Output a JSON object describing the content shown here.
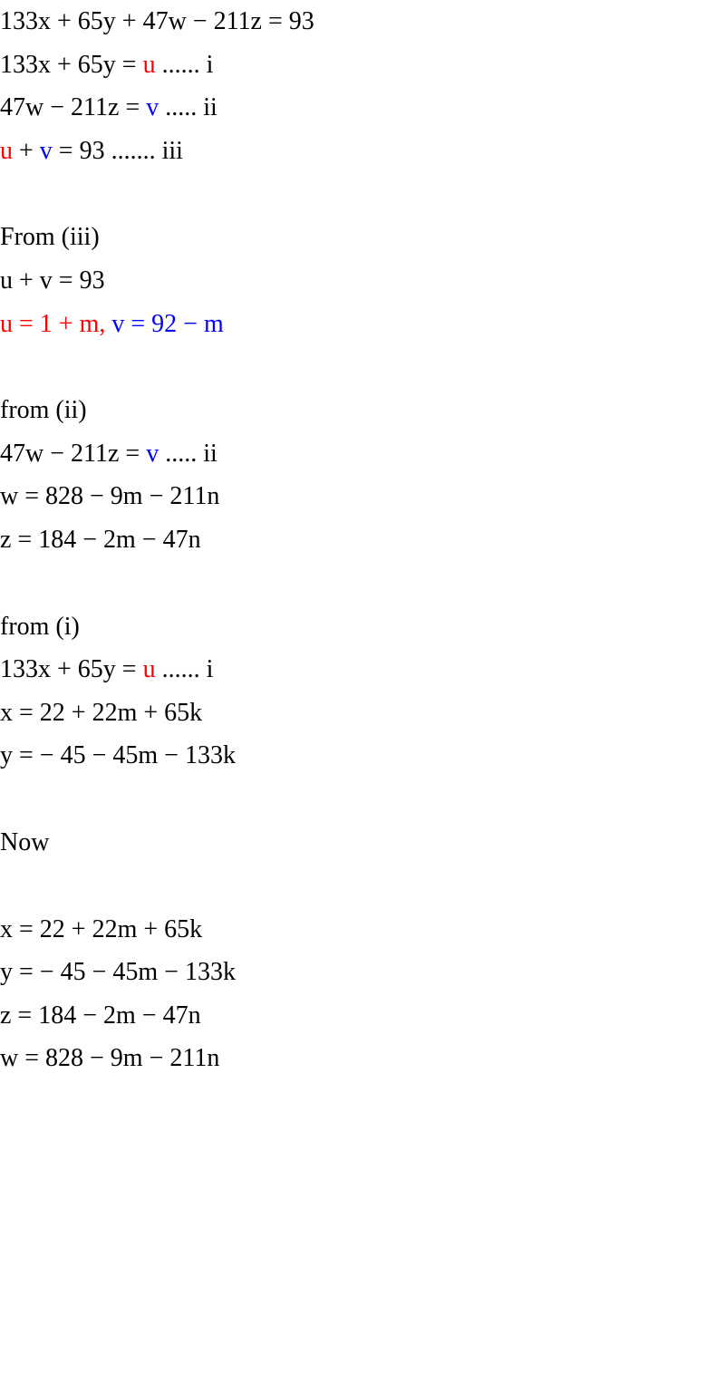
{
  "lines": {
    "l1": {
      "text": "133x + 65y + 47w − 211z = 93"
    },
    "l2": {
      "pre": "133x + 65y = ",
      "u": "u",
      "post": "       ...... i"
    },
    "l3": {
      "pre": "47w − 211z = ",
      "v": "v",
      "post": "     ..... ii"
    },
    "l4": {
      "u": "u",
      "mid": " + ",
      "v": "v",
      "post": " = 93       ....... iii"
    },
    "l5": {
      "text": "From (iii)"
    },
    "l6": {
      "text": "u + v = 93"
    },
    "l7": {
      "u": "u = 1 + m,",
      "mid": "    ",
      "v": "v = 92 − m"
    },
    "l8": {
      "text": "from  (ii)"
    },
    "l9": {
      "pre": "47w − 211z = ",
      "v": "v",
      "post": "     ..... ii"
    },
    "l10": {
      "text": "w = 828 − 9m − 211n"
    },
    "l11": {
      "text": "z = 184 − 2m − 47n"
    },
    "l12": {
      "text": "from  (i)"
    },
    "l13": {
      "pre": "133x + 65y = ",
      "u": "u",
      "post": "       ...... i"
    },
    "l14": {
      "text": "x = 22 + 22m + 65k"
    },
    "l15": {
      "text": "y = − 45 − 45m − 133k"
    },
    "l16": {
      "text": "Now"
    },
    "l17": {
      "text": "x = 22 + 22m + 65k"
    },
    "l18": {
      "text": "y = − 45 − 45m − 133k"
    },
    "l19": {
      "text": "z = 184 − 2m − 47n"
    },
    "l20": {
      "text": "w = 828 − 9m − 211n"
    }
  },
  "colors": {
    "red": "#ff0000",
    "blue": "#0000ff",
    "black": "#000000",
    "background": "#ffffff"
  },
  "typography": {
    "font_family": "Times New Roman",
    "font_size_pt": 21,
    "line_height": 1.7
  }
}
